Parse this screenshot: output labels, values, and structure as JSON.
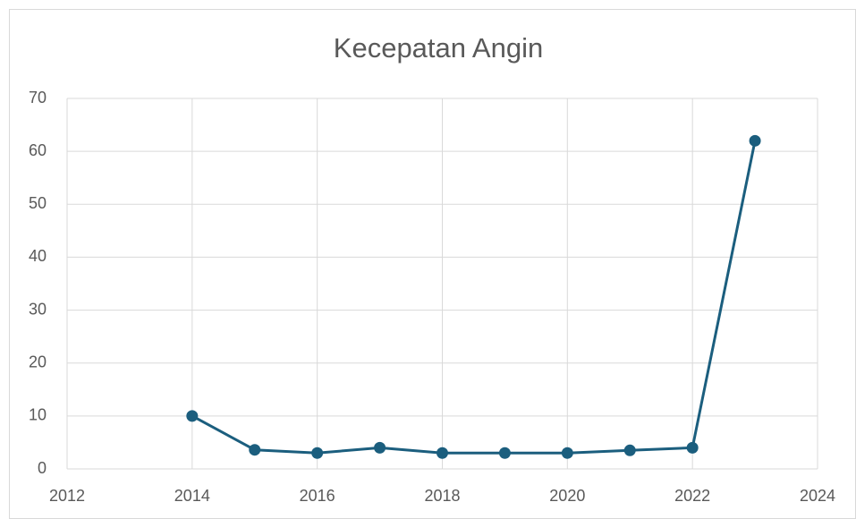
{
  "chart_data": {
    "type": "line",
    "title": "Kecepatan Angin",
    "x": [
      2014,
      2015,
      2016,
      2017,
      2018,
      2019,
      2020,
      2021,
      2022,
      2023
    ],
    "series": [
      {
        "name": "Kecepatan Angin",
        "color": "#1b5e7e",
        "values": [
          10,
          3.6,
          3,
          4,
          3,
          3,
          3,
          3.5,
          4,
          62
        ]
      }
    ],
    "xlim": [
      2012,
      2024
    ],
    "xticks": [
      2012,
      2014,
      2016,
      2018,
      2020,
      2022,
      2024
    ],
    "ylim": [
      0,
      70
    ],
    "yticks": [
      0,
      10,
      20,
      30,
      40,
      50,
      60,
      70
    ],
    "grid": true
  }
}
